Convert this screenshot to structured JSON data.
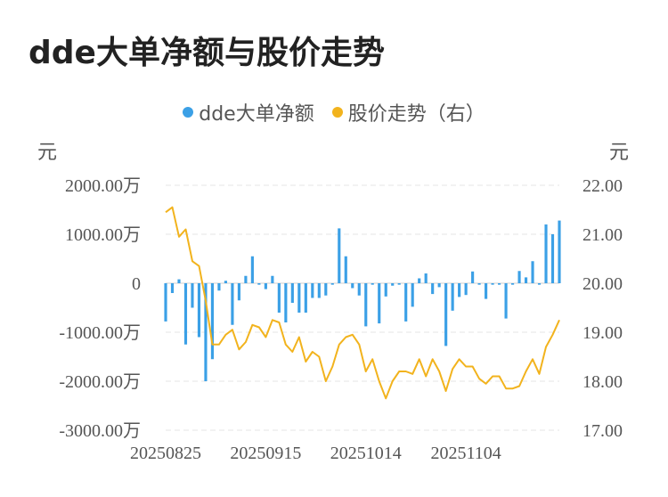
{
  "title": "dde大单净额与股价走势",
  "legend": {
    "bar_label": "dde大单净额",
    "line_label": "股价走势（右）"
  },
  "units": {
    "left": "元",
    "right": "元"
  },
  "colors": {
    "bar": "#3ba0e6",
    "line": "#f2b31d",
    "grid": "#e6e6e6"
  },
  "chart_data": {
    "type": "bar+line",
    "title": "dde大单净额与股价走势",
    "left_axis": {
      "unit": "元",
      "ticks": [
        "2000.00万",
        "1000.00万",
        "0",
        "-1000.00万",
        "-2000.00万",
        "-3000.00万"
      ],
      "ylim": [
        -3000,
        2000
      ]
    },
    "right_axis": {
      "unit": "元",
      "ticks": [
        "22.00",
        "21.00",
        "20.00",
        "19.00",
        "18.00",
        "17.00"
      ],
      "ylim": [
        17,
        22
      ]
    },
    "x_ticks": [
      "20250825",
      "20250915",
      "20251014",
      "20251104"
    ],
    "x_tick_index": [
      0,
      15,
      30,
      45
    ],
    "series": [
      {
        "name": "dde大单净额",
        "type": "bar",
        "values": [
          -780,
          -200,
          80,
          -1250,
          -500,
          -1100,
          -2000,
          -1550,
          -150,
          50,
          -850,
          -350,
          150,
          550,
          -30,
          -120,
          150,
          -600,
          -800,
          -400,
          -600,
          -600,
          -300,
          -300,
          -250,
          -30,
          1120,
          550,
          -100,
          -250,
          -880,
          -30,
          -820,
          -270,
          -50,
          -30,
          -780,
          -480,
          100,
          200,
          -220,
          -80,
          -1280,
          -560,
          -280,
          -240,
          240,
          -30,
          -320,
          -30,
          -30,
          -720,
          -30,
          250,
          120,
          450,
          -30,
          1200,
          1000,
          1280
        ]
      },
      {
        "name": "股价走势（右）",
        "type": "line",
        "values": [
          21.45,
          21.55,
          20.95,
          21.1,
          20.45,
          20.35,
          19.65,
          18.75,
          18.75,
          18.95,
          19.05,
          18.65,
          18.8,
          19.15,
          19.1,
          18.9,
          19.25,
          19.2,
          18.75,
          18.6,
          18.9,
          18.4,
          18.6,
          18.5,
          18.0,
          18.3,
          18.75,
          18.9,
          18.95,
          18.75,
          18.2,
          18.45,
          18.0,
          17.65,
          18.0,
          18.2,
          18.2,
          18.15,
          18.45,
          18.1,
          18.45,
          18.2,
          17.8,
          18.25,
          18.45,
          18.3,
          18.3,
          18.05,
          17.95,
          18.1,
          18.1,
          17.85,
          17.85,
          17.9,
          18.2,
          18.45,
          18.15,
          18.7,
          18.95,
          19.25
        ]
      }
    ],
    "grid": true
  }
}
